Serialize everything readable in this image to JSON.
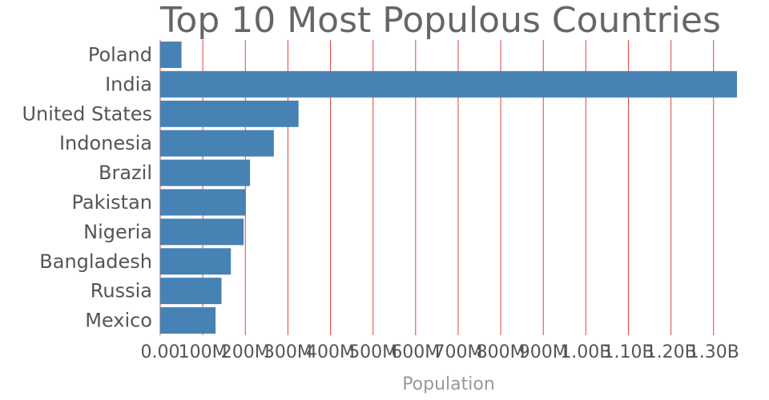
{
  "chart_data": {
    "type": "bar",
    "orientation": "horizontal",
    "title": "Top 10 Most Populous Countries",
    "xlabel": "Population",
    "ylabel": "",
    "categories": [
      "Poland",
      "India",
      "United States",
      "Indonesia",
      "Brazil",
      "Pakistan",
      "Nigeria",
      "Bangladesh",
      "Russia",
      "Mexico"
    ],
    "values": [
      50000000,
      1355000000,
      325000000,
      267000000,
      211000000,
      201000000,
      196000000,
      166000000,
      144000000,
      130000000
    ],
    "xlim": [
      0,
      1355000000
    ],
    "xticks": [
      0,
      100000000,
      200000000,
      300000000,
      400000000,
      500000000,
      600000000,
      700000000,
      800000000,
      900000000,
      1000000000,
      1100000000,
      1200000000,
      1300000000
    ],
    "xtick_labels": [
      "0.00",
      "100M",
      "200M",
      "300M",
      "400M",
      "500M",
      "600M",
      "700M",
      "800M",
      "900M",
      "1.00B",
      "1.10B",
      "1.20B",
      "1.30B"
    ],
    "grid": true,
    "grid_color": "#e0443c",
    "bar_color": "#4682b4",
    "legend": "none"
  }
}
